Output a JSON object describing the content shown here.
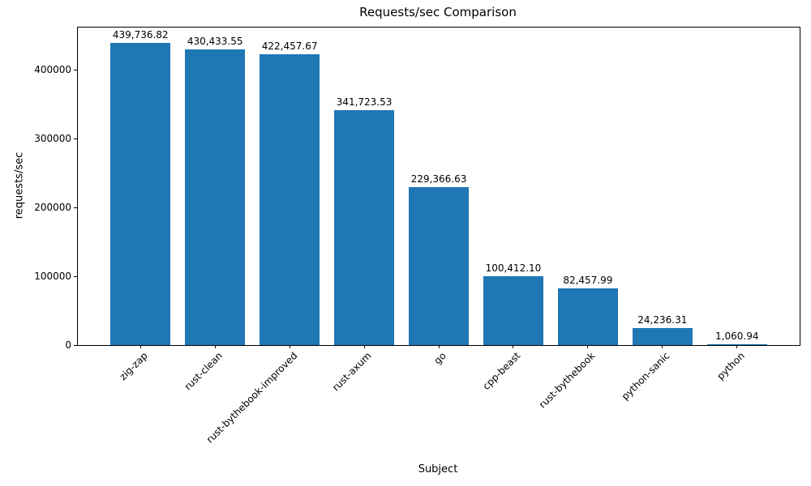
{
  "chart_data": {
    "type": "bar",
    "title": "Requests/sec Comparison",
    "xlabel": "Subject",
    "ylabel": "requests/sec",
    "categories": [
      "zig-zap",
      "rust-clean",
      "rust-bythebook-improved",
      "rust-axum",
      "go",
      "cpp-beast",
      "rust-bythebook",
      "python-sanic",
      "python"
    ],
    "values": [
      439736.82,
      430433.55,
      422457.67,
      341723.53,
      229366.63,
      100412.1,
      82457.99,
      24236.31,
      1060.94
    ],
    "value_labels": [
      "439,736.82",
      "430,433.55",
      "422,457.67",
      "341,723.53",
      "229,366.63",
      "100,412.10",
      "82,457.99",
      "24,236.31",
      "1,060.94"
    ],
    "yticks": [
      0,
      100000,
      200000,
      300000,
      400000
    ],
    "ytick_labels": [
      "0",
      "100000",
      "200000",
      "300000",
      "400000"
    ],
    "ylim": [
      0,
      461723
    ],
    "bar_color": "#1f77b4",
    "bar_rel_width": 0.8,
    "grid": false,
    "legend": "none"
  }
}
